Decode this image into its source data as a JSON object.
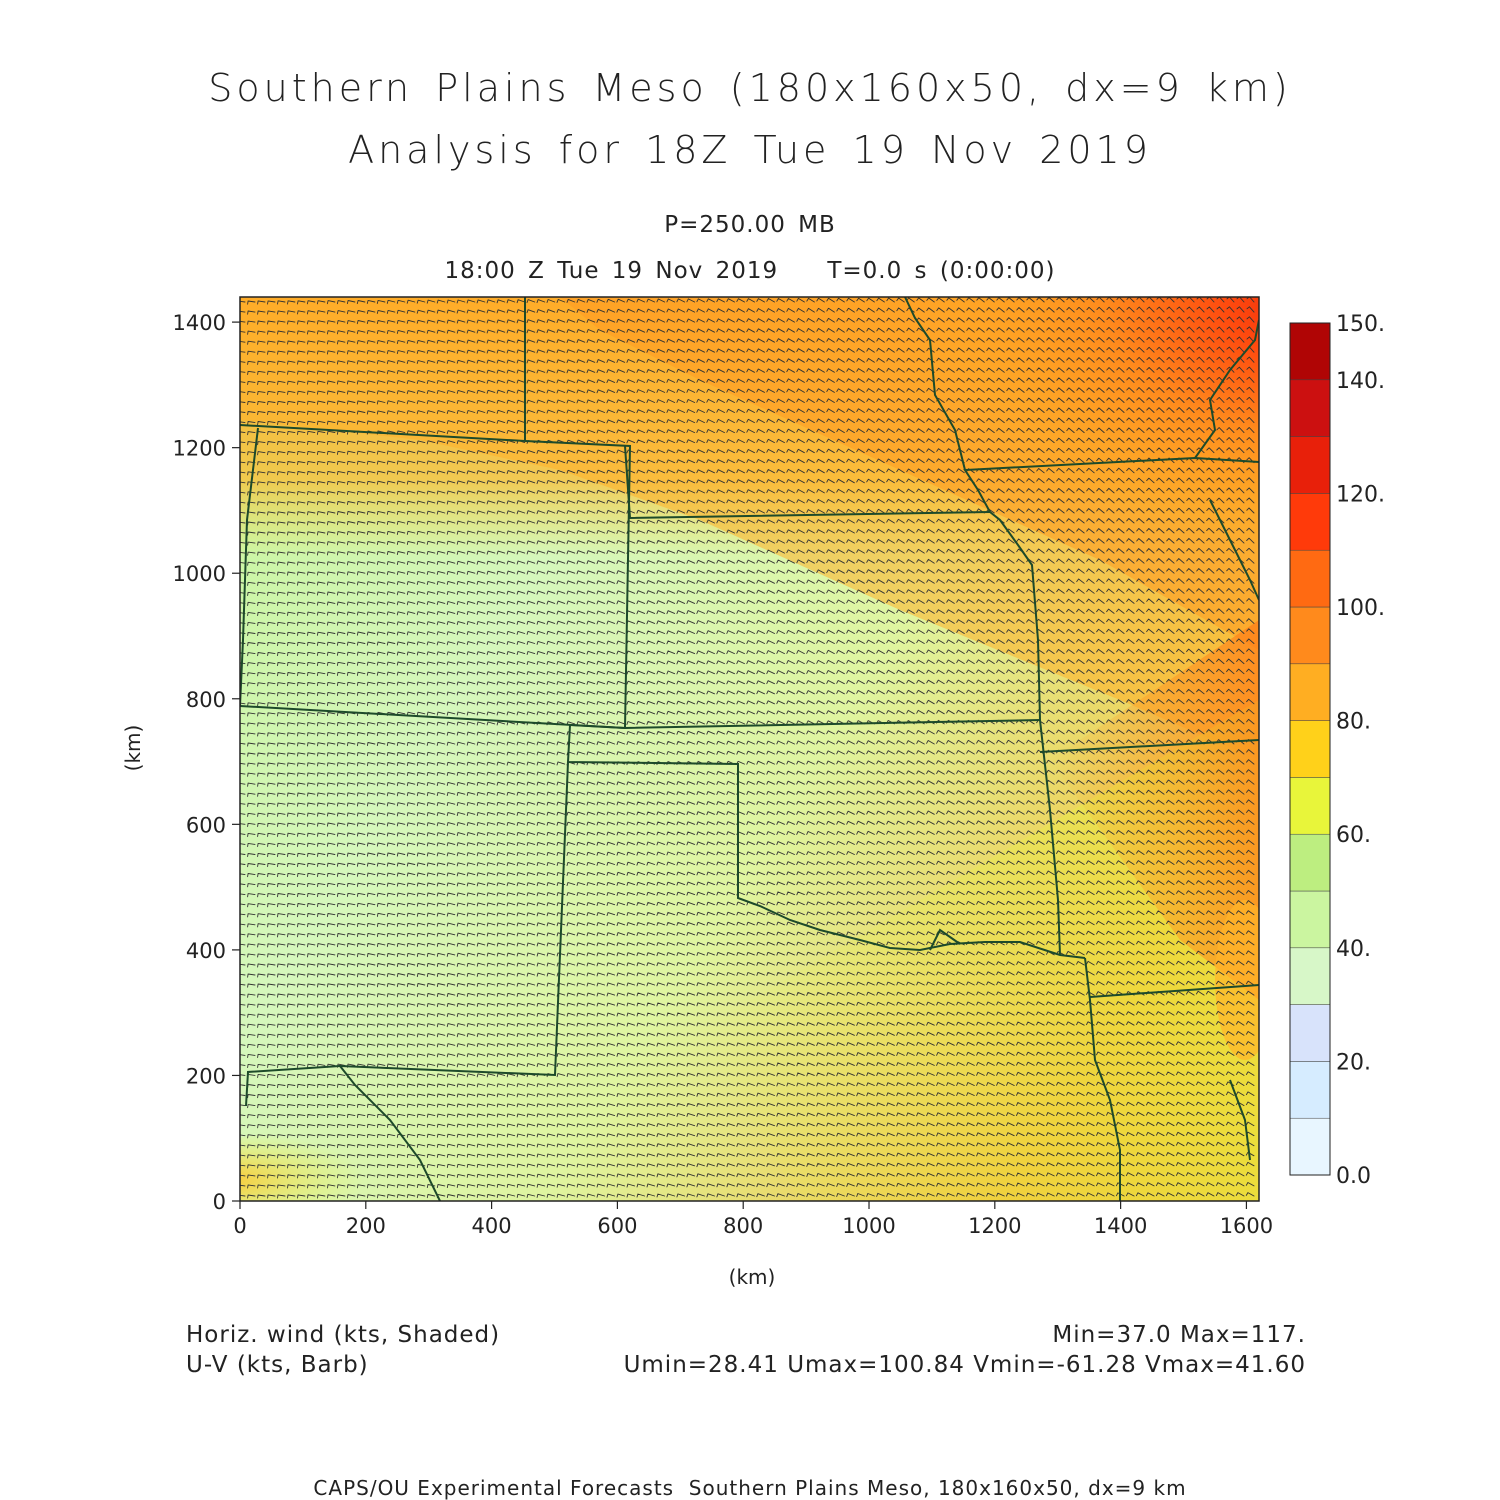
{
  "title": {
    "line1": "Southern Plains Meso (180x160x50, dx=9 km)",
    "line2": "Analysis for 18Z Tue 19 Nov 2019"
  },
  "level": "P=250.00 MB",
  "valid_time": "18:00 Z Tue 19 Nov 2019    T=0.0 s (0:00:00)",
  "map": {
    "x_axis": {
      "label": "(km)",
      "ticks": [
        "0",
        "200",
        "400",
        "600",
        "800",
        "1000",
        "1200",
        "1400",
        "1600"
      ],
      "range": [
        0,
        1620
      ]
    },
    "y_axis": {
      "label": "(km)",
      "ticks": [
        "0",
        "200",
        "400",
        "600",
        "800",
        "1000",
        "1200",
        "1400"
      ],
      "range": [
        0,
        1440
      ]
    },
    "field_shaded": "Horiz. wind (kts, Shaded)",
    "field_barbs": "U-V (kts, Barb)",
    "boundary_color": "#1d4a2a",
    "barb_color": "#333333"
  },
  "colorbar": {
    "labels": [
      "0.0",
      "20.",
      "40.",
      "60.",
      "80.",
      "100.",
      "120.",
      "140.",
      "150."
    ],
    "colors": [
      "#e8f6ff",
      "#d6ecff",
      "#d8e3fb",
      "#d7f7c8",
      "#cbf5a0",
      "#bdee80",
      "#e8f53a",
      "#ffd11a",
      "#ffae22",
      "#ff8a1c",
      "#ff6a12",
      "#ff3a0a",
      "#e8200a",
      "#cc1010",
      "#b00505"
    ]
  },
  "stats": {
    "minmax": "Min=37.0 Max=117.",
    "uv": "Umin=28.41 Umax=100.84 Vmin=-61.28 Vmax=41.60"
  },
  "footer": "CAPS/OU Experimental Forecasts  Southern Plains Meso, 180x160x50, dx=9 km"
}
